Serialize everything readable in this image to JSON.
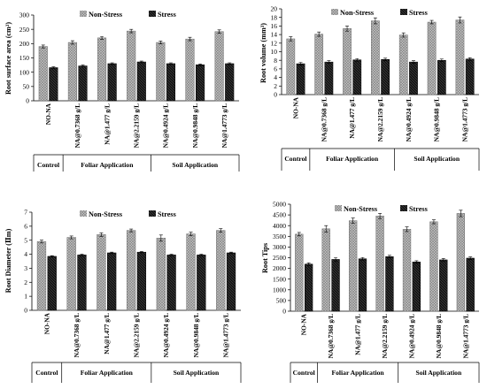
{
  "colors": {
    "non_stress": "#b9b9b9",
    "stress": "#1c1c1c"
  },
  "legend": {
    "non_stress": "Non-Stress",
    "stress": "Stress"
  },
  "categories": [
    "NO-NA",
    "NA@0.7368 g/L",
    "NA@1.477 g/L",
    "NA@2.2159 g/L",
    "NA@0.4924 g/L",
    "NA@0.9848 g/L",
    "NA@1.4773 g/L"
  ],
  "groups": [
    {
      "label": "Control",
      "span": [
        0,
        0
      ]
    },
    {
      "label": "Foliar Application",
      "span": [
        1,
        3
      ]
    },
    {
      "label": "Soil Application",
      "span": [
        4,
        6
      ]
    }
  ],
  "chart_data": [
    {
      "type": "bar",
      "ylabel": "Root surface area (cm²)",
      "ylim": [
        0,
        300
      ],
      "yticks": [
        0,
        50,
        100,
        150,
        200,
        250,
        300
      ],
      "categories": [
        "NO-NA",
        "NA@0.7368 g/L",
        "NA@1.477 g/L",
        "NA@2.2159 g/L",
        "NA@0.4924 g/L",
        "NA@0.9848 g/L",
        "NA@1.4773 g/L"
      ],
      "series": [
        {
          "name": "Non-Stress",
          "values": [
            190,
            204,
            220,
            244,
            204,
            216,
            242
          ],
          "errors": [
            5,
            6,
            5,
            6,
            5,
            6,
            6
          ]
        },
        {
          "name": "Stress",
          "values": [
            116,
            122,
            130,
            136,
            130,
            126,
            130
          ],
          "errors": [
            3,
            3,
            3,
            3,
            3,
            3,
            3
          ]
        }
      ],
      "grid": false,
      "legend_position": "top"
    },
    {
      "type": "bar",
      "ylabel": "Root volume (mm³)",
      "ylim": [
        0,
        20
      ],
      "yticks": [
        0,
        2,
        4,
        6,
        8,
        10,
        12,
        14,
        16,
        18,
        20
      ],
      "categories": [
        "NO-NA",
        "NA@0.7368 g/L",
        "NA@1.477 g/L",
        "NA@2.2159 g/L",
        "NA@0.4924 g/L",
        "NA@0.9848 g/L",
        "NA@1.4773 g/L"
      ],
      "series": [
        {
          "name": "Non-Stress",
          "values": [
            13.0,
            14.1,
            15.4,
            17.2,
            13.9,
            16.9,
            17.4
          ],
          "errors": [
            0.5,
            0.5,
            0.6,
            0.7,
            0.5,
            0.4,
            0.7
          ]
        },
        {
          "name": "Stress",
          "values": [
            7.2,
            7.6,
            8.1,
            8.2,
            7.6,
            8.0,
            8.3
          ],
          "errors": [
            0.3,
            0.3,
            0.3,
            0.3,
            0.3,
            0.3,
            0.3
          ]
        }
      ],
      "grid": false,
      "legend_position": "top"
    },
    {
      "type": "bar",
      "ylabel": "Root Diameter (Ⅱm)",
      "ylim": [
        0,
        7
      ],
      "yticks": [
        0,
        1,
        2,
        3,
        4,
        5,
        6,
        7
      ],
      "categories": [
        "NO-NA",
        "NA@0.7368 g/L",
        "NA@1.477 g/L",
        "NA@2.2159 g/L",
        "NA@0.4924 g/L",
        "NA@0.9848 g/L",
        "NA@1.4773 g/L"
      ],
      "series": [
        {
          "name": "Non-Stress",
          "values": [
            4.9,
            5.2,
            5.4,
            5.7,
            5.15,
            5.45,
            5.7
          ],
          "errors": [
            0.1,
            0.1,
            0.12,
            0.1,
            0.22,
            0.12,
            0.12
          ]
        },
        {
          "name": "Stress",
          "values": [
            3.85,
            3.95,
            4.1,
            4.15,
            3.95,
            3.95,
            4.1
          ],
          "errors": [
            0.05,
            0.05,
            0.05,
            0.05,
            0.05,
            0.05,
            0.05
          ]
        }
      ],
      "grid": false,
      "legend_position": "top"
    },
    {
      "type": "bar",
      "ylabel": "Root Tips",
      "ylim": [
        0,
        5000
      ],
      "yticks": [
        0,
        500,
        1000,
        1500,
        2000,
        2500,
        3000,
        3500,
        4000,
        4500,
        5000
      ],
      "categories": [
        "NO-NA",
        "NA@0.7368 g/L",
        "NA@1.477 g/L",
        "NA@2.2159 g/L",
        "NA@0.4924 g/L",
        "NA@0.9848 g/L",
        "NA@1.4773 g/L"
      ],
      "series": [
        {
          "name": "Non-Stress",
          "values": [
            3600,
            3850,
            4230,
            4450,
            3830,
            4180,
            4570
          ],
          "errors": [
            80,
            150,
            120,
            120,
            110,
            90,
            150
          ]
        },
        {
          "name": "Stress",
          "values": [
            2200,
            2420,
            2450,
            2550,
            2300,
            2400,
            2480
          ],
          "errors": [
            60,
            80,
            60,
            60,
            60,
            60,
            60
          ]
        }
      ],
      "grid": false,
      "legend_position": "top"
    }
  ]
}
